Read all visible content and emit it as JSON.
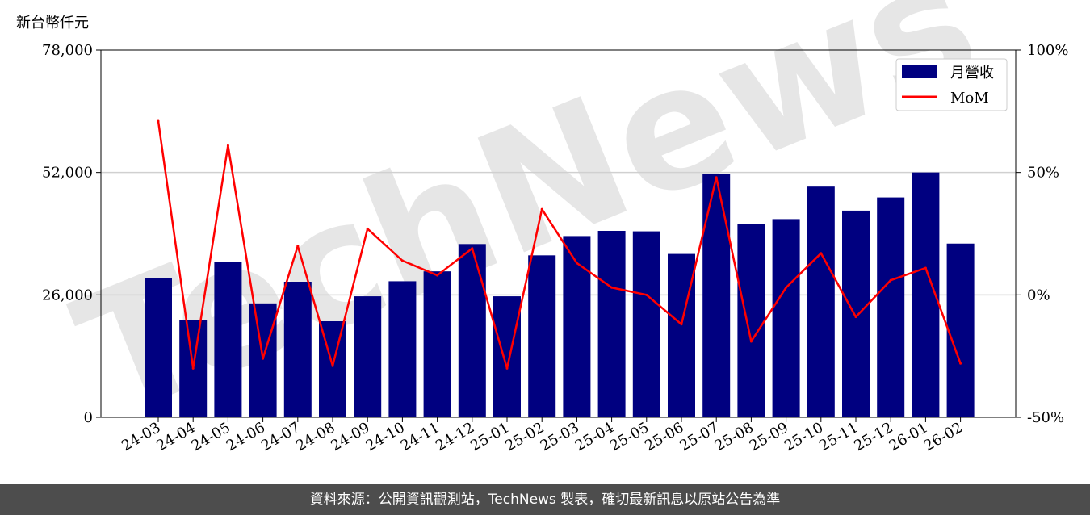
{
  "unit_label": "新台幣仟元",
  "watermark": "TechNews",
  "footer_text": "資料來源：公開資訊觀測站，TechNews 製表，確切最新訊息以原站公告為準",
  "chart_data": {
    "type": "bar",
    "categories": [
      "24-03",
      "24-04",
      "24-05",
      "24-06",
      "24-07",
      "24-08",
      "24-09",
      "24-10",
      "24-11",
      "24-12",
      "25-01",
      "25-02",
      "25-03",
      "25-04",
      "25-05",
      "25-06",
      "25-07",
      "25-08",
      "25-09",
      "25-10",
      "25-11",
      "25-12",
      "26-01",
      "26-02"
    ],
    "series": [
      {
        "name": "月營收",
        "type": "bar",
        "axis": "left",
        "color": "#000080",
        "values": [
          29600,
          20600,
          33000,
          24200,
          28800,
          20400,
          25700,
          28900,
          31000,
          36800,
          25700,
          34400,
          38500,
          39600,
          39500,
          34700,
          51600,
          41000,
          42100,
          49000,
          43900,
          46700,
          52000,
          36900
        ]
      },
      {
        "name": "MoM",
        "type": "line",
        "axis": "right",
        "color": "#ff0000",
        "values": [
          71,
          -30,
          61,
          -26,
          20,
          -29,
          27,
          14,
          8,
          19,
          -30,
          35,
          13,
          3,
          0,
          -12,
          48,
          -19,
          3,
          17,
          -9,
          6,
          11,
          -28
        ]
      }
    ],
    "y_left": {
      "ticks": [
        "0",
        "26,000",
        "52,000",
        "78,000"
      ],
      "ylim": [
        0,
        78000
      ]
    },
    "y_right": {
      "ticks": [
        "-50%",
        "0%",
        "50%",
        "100%"
      ],
      "ylim": [
        -50,
        100
      ]
    },
    "grid": "horizontal",
    "legend_position": "top-right"
  }
}
